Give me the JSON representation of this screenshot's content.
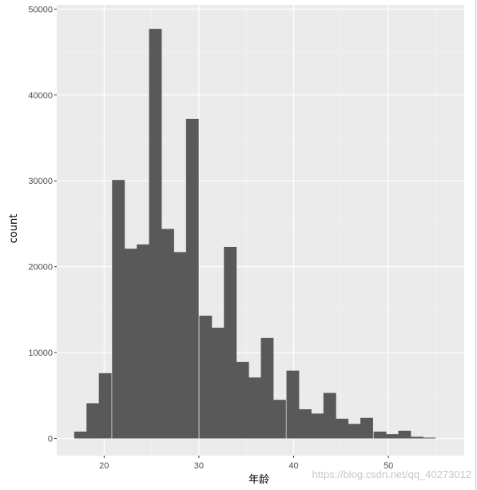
{
  "chart_data": {
    "type": "bar",
    "xlabel": "年龄",
    "ylabel": "count",
    "xlim": [
      15,
      58
    ],
    "ylim": [
      -2000,
      50500
    ],
    "x_ticks": [
      20,
      30,
      40,
      50
    ],
    "y_ticks": [
      0,
      10000,
      20000,
      30000,
      40000,
      50000
    ],
    "x_tick_labels": [
      "20",
      "30",
      "40",
      "50"
    ],
    "y_tick_labels": [
      "0",
      "10000",
      "20000",
      "30000",
      "40000",
      "50000"
    ],
    "bin_width": 1.315,
    "bins": [
      {
        "x": 17.5,
        "count": 800
      },
      {
        "x": 18.8,
        "count": 4100
      },
      {
        "x": 20.1,
        "count": 7600
      },
      {
        "x": 21.5,
        "count": 30100
      },
      {
        "x": 22.8,
        "count": 22100
      },
      {
        "x": 24.1,
        "count": 22600
      },
      {
        "x": 25.4,
        "count": 47700
      },
      {
        "x": 26.7,
        "count": 24400
      },
      {
        "x": 28.0,
        "count": 21700
      },
      {
        "x": 29.3,
        "count": 37200
      },
      {
        "x": 30.7,
        "count": 14300
      },
      {
        "x": 32.0,
        "count": 12900
      },
      {
        "x": 33.3,
        "count": 22300
      },
      {
        "x": 34.6,
        "count": 8900
      },
      {
        "x": 35.9,
        "count": 7100
      },
      {
        "x": 37.2,
        "count": 11700
      },
      {
        "x": 38.5,
        "count": 4500
      },
      {
        "x": 39.9,
        "count": 7900
      },
      {
        "x": 41.2,
        "count": 3400
      },
      {
        "x": 42.5,
        "count": 2900
      },
      {
        "x": 43.8,
        "count": 5300
      },
      {
        "x": 45.1,
        "count": 2300
      },
      {
        "x": 46.4,
        "count": 1700
      },
      {
        "x": 47.7,
        "count": 2400
      },
      {
        "x": 49.1,
        "count": 800
      },
      {
        "x": 50.4,
        "count": 500
      },
      {
        "x": 51.7,
        "count": 900
      },
      {
        "x": 53.0,
        "count": 200
      },
      {
        "x": 54.3,
        "count": 100
      }
    ],
    "grid": true,
    "colors": {
      "panel": "#ebebeb",
      "bar": "#595959",
      "grid_major": "#ffffff",
      "grid_minor": "#f5f5f5"
    }
  },
  "watermark": "https://blog.csdn.net/qq_40273012"
}
